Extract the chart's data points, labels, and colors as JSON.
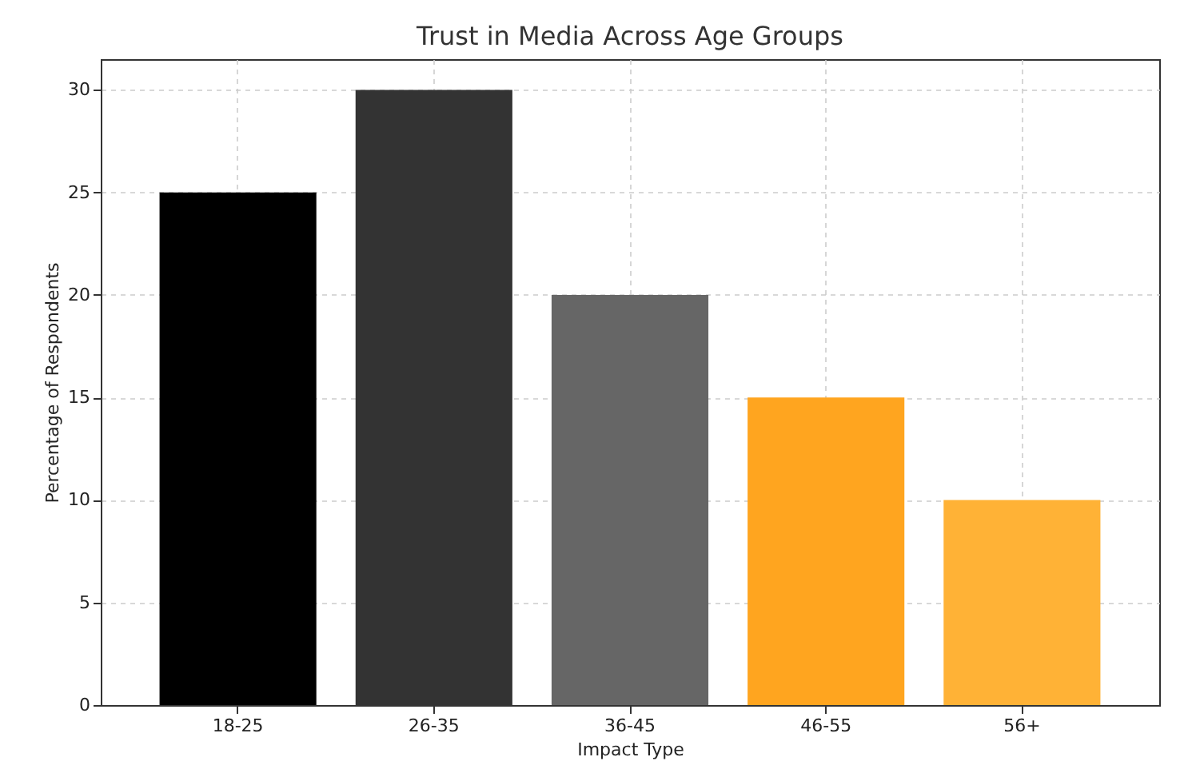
{
  "chart_data": {
    "type": "bar",
    "title": "Trust in Media Across Age Groups",
    "xlabel": "Impact Type",
    "ylabel": "Percentage of Respondents",
    "categories": [
      "18-25",
      "26-35",
      "36-45",
      "46-55",
      "56+"
    ],
    "values": [
      25,
      30,
      20,
      15,
      10
    ],
    "colors": [
      "#000000",
      "#333333",
      "#666666",
      "#ffa51f",
      "#ffb236"
    ],
    "ylim": [
      0,
      31.5
    ],
    "yticks": [
      0,
      5,
      10,
      15,
      20,
      25,
      30
    ],
    "grid": true
  }
}
